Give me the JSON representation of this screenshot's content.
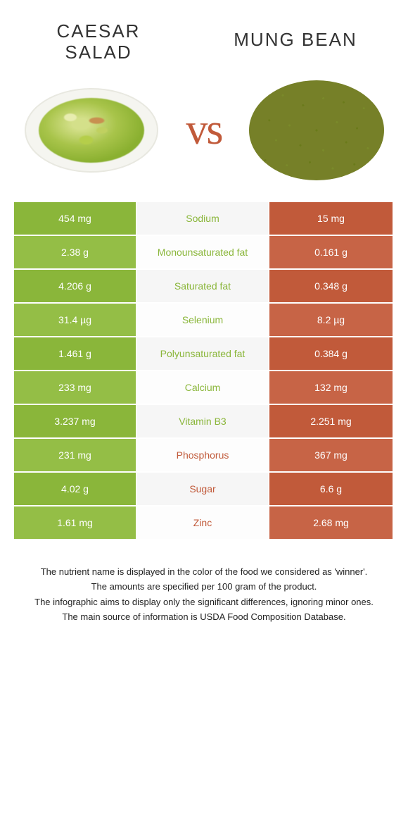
{
  "colors": {
    "left_food": "#8ab63a",
    "left_food_alt": "#94be46",
    "right_food": "#c15a3a",
    "right_food_alt": "#c76446",
    "mid_bg": "#f6f6f6",
    "mid_bg_alt": "#fdfdfd"
  },
  "left": {
    "title_line1": "CAESAR",
    "title_line2": "SALAD"
  },
  "right": {
    "title": "MUNG BEAN"
  },
  "vs": "vs",
  "nutrients": [
    {
      "label": "Sodium",
      "left": "454 mg",
      "right": "15 mg",
      "winner": "left"
    },
    {
      "label": "Monounsaturated fat",
      "left": "2.38 g",
      "right": "0.161 g",
      "winner": "left"
    },
    {
      "label": "Saturated fat",
      "left": "4.206 g",
      "right": "0.348 g",
      "winner": "left"
    },
    {
      "label": "Selenium",
      "left": "31.4 µg",
      "right": "8.2 µg",
      "winner": "left"
    },
    {
      "label": "Polyunsaturated fat",
      "left": "1.461 g",
      "right": "0.384 g",
      "winner": "left"
    },
    {
      "label": "Calcium",
      "left": "233 mg",
      "right": "132 mg",
      "winner": "left"
    },
    {
      "label": "Vitamin B3",
      "left": "3.237 mg",
      "right": "2.251 mg",
      "winner": "left"
    },
    {
      "label": "Phosphorus",
      "left": "231 mg",
      "right": "367 mg",
      "winner": "right"
    },
    {
      "label": "Sugar",
      "left": "4.02 g",
      "right": "6.6 g",
      "winner": "right"
    },
    {
      "label": "Zinc",
      "left": "1.61 mg",
      "right": "2.68 mg",
      "winner": "right"
    }
  ],
  "footer": [
    "The nutrient name is displayed in the color of the food we considered as 'winner'.",
    "The amounts are specified per 100 gram of the product.",
    "The infographic aims to display only the significant differences, ignoring minor ones.",
    "The main source of information is USDA Food Composition Database."
  ]
}
